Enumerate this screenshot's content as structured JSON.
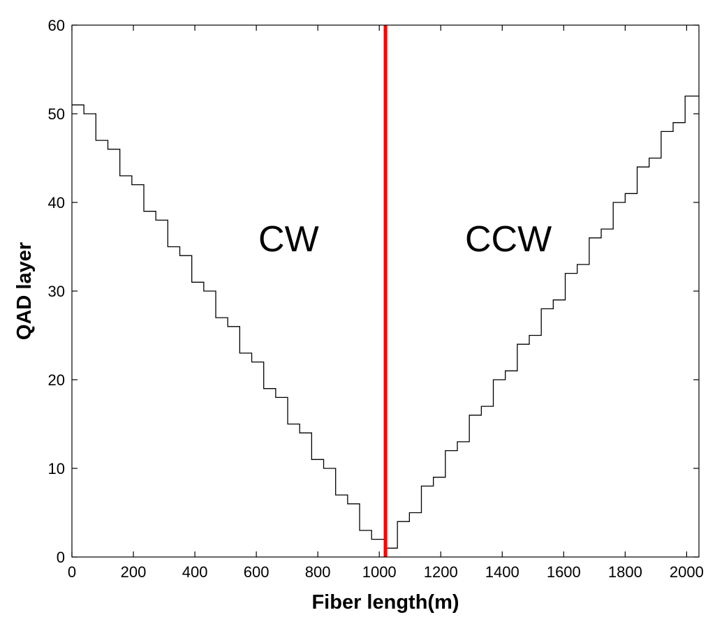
{
  "chart_data": {
    "type": "line",
    "title": "",
    "xlabel": "Fiber length(m)",
    "ylabel": "QAD layer",
    "xlim": [
      0,
      2040
    ],
    "ylim": [
      0,
      60
    ],
    "xticks": [
      "0",
      "200",
      "400",
      "600",
      "800",
      "1000",
      "1200",
      "1400",
      "1600",
      "1800",
      "2000"
    ],
    "yticks": [
      "0",
      "10",
      "20",
      "30",
      "40",
      "50",
      "60"
    ],
    "grid": false,
    "annotations": [
      {
        "text": "CW",
        "x": 705,
        "y": 36
      },
      {
        "text": "CCW",
        "x": 1420,
        "y": 36
      }
    ],
    "divider": {
      "x": 1020,
      "color": "#ff0000"
    },
    "series": [
      {
        "style": "step",
        "color": "#000000",
        "x": [
          0,
          39,
          78,
          117,
          156,
          195,
          234,
          273,
          312,
          351,
          390,
          429,
          468,
          507,
          546,
          585,
          624,
          663,
          702,
          741,
          780,
          819,
          858,
          897,
          936,
          975,
          1020,
          1059,
          1098,
          1137,
          1176,
          1215,
          1254,
          1293,
          1332,
          1371,
          1410,
          1449,
          1488,
          1527,
          1566,
          1605,
          1644,
          1683,
          1722,
          1761,
          1800,
          1839,
          1878,
          1917,
          1956,
          1995,
          2040
        ],
        "y": [
          51,
          50,
          47,
          46,
          43,
          42,
          39,
          38,
          35,
          34,
          31,
          30,
          27,
          26,
          23,
          22,
          19,
          18,
          15,
          14,
          11,
          10,
          7,
          6,
          3,
          2,
          1,
          4,
          5,
          8,
          9,
          12,
          13,
          16,
          17,
          20,
          21,
          24,
          25,
          28,
          29,
          32,
          33,
          36,
          37,
          40,
          41,
          44,
          45,
          48,
          49,
          52,
          52
        ]
      }
    ]
  }
}
